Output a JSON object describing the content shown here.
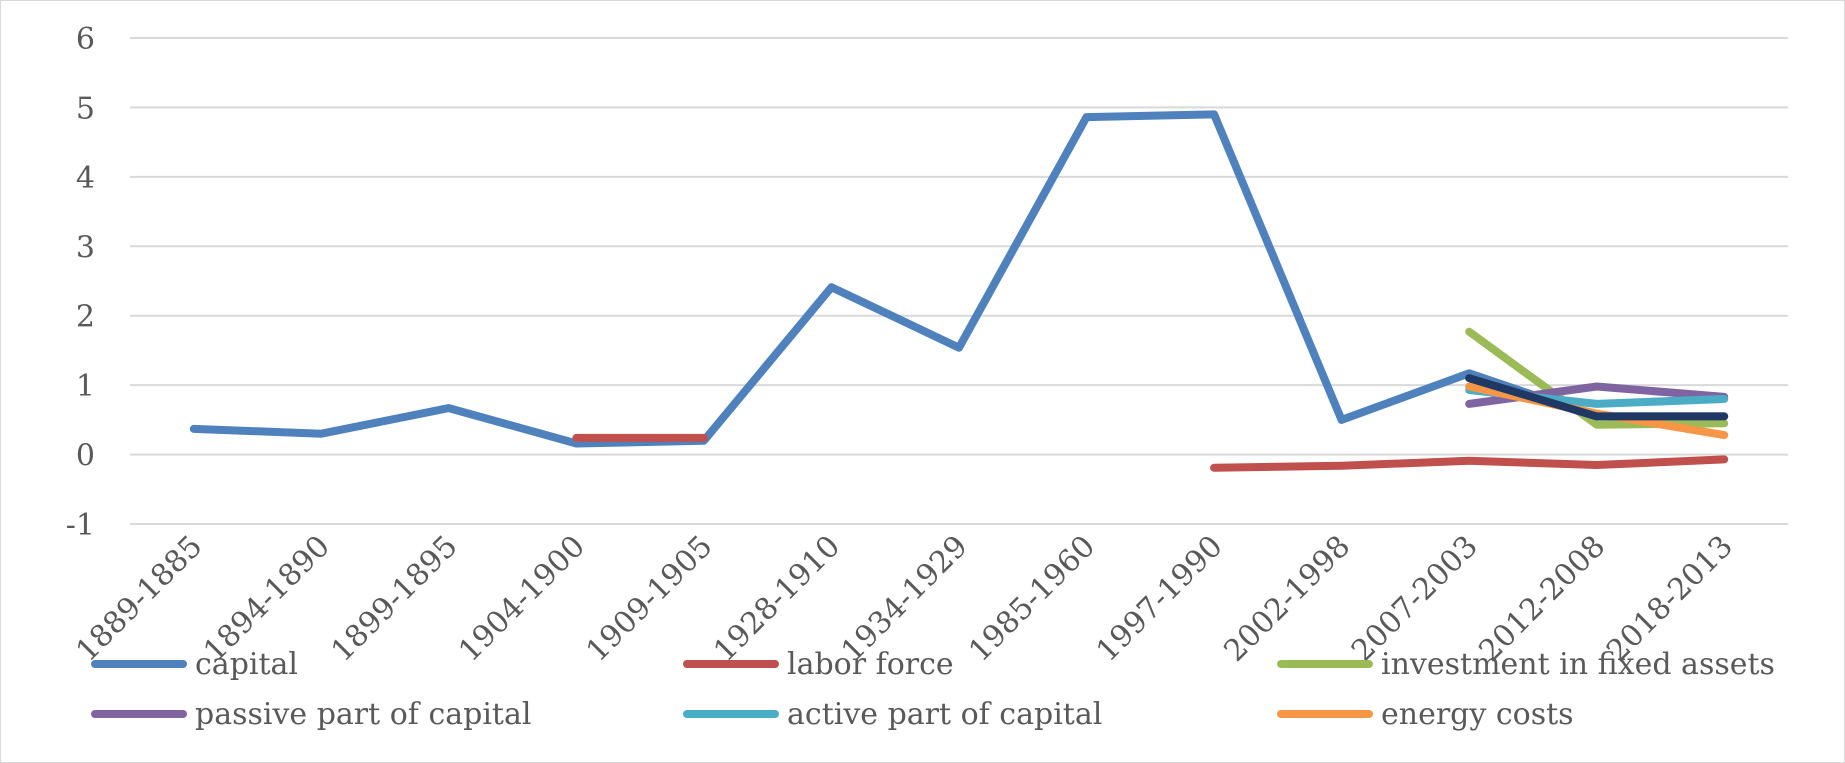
{
  "chart_data": {
    "type": "line",
    "categories": [
      "1889-1885",
      "1894-1890",
      "1899-1895",
      "1904-1900",
      "1909-1905",
      "1928-1910",
      "1934-1929",
      "1985-1960",
      "1997-1990",
      "2002-1998",
      "2007-2003",
      "2012-2008",
      "2018-2013"
    ],
    "ylim": [
      -1,
      6
    ],
    "yticks": [
      "-1",
      "0",
      "1",
      "2",
      "3",
      "4",
      "5",
      "6"
    ],
    "grid": true,
    "legend_position": "bottom",
    "series": [
      {
        "name": "capital",
        "color": "#4f81bd",
        "values": [
          0.37,
          0.3,
          0.67,
          0.16,
          0.2,
          2.41,
          1.54,
          4.86,
          4.9,
          0.5,
          1.17,
          0.55,
          0.55
        ]
      },
      {
        "name": "labor force",
        "color": "#c0504d",
        "values": [
          null,
          null,
          null,
          0.24,
          0.24,
          null,
          null,
          null,
          -0.19,
          -0.16,
          -0.09,
          -0.15,
          -0.07
        ]
      },
      {
        "name": "investment in fixed assets",
        "color": "#9bbb59",
        "values": [
          null,
          null,
          null,
          null,
          null,
          null,
          null,
          null,
          null,
          null,
          1.77,
          0.43,
          0.45
        ]
      },
      {
        "name": "passive part of capital",
        "color": "#8064a2",
        "values": [
          null,
          null,
          null,
          null,
          null,
          null,
          null,
          null,
          null,
          null,
          0.73,
          0.98,
          0.83
        ]
      },
      {
        "name": "active part of capital",
        "color": "#4bacc6",
        "values": [
          null,
          null,
          null,
          null,
          null,
          null,
          null,
          null,
          null,
          null,
          0.93,
          0.73,
          0.8
        ]
      },
      {
        "name": "energy costs",
        "color": "#f79646",
        "values": [
          null,
          null,
          null,
          null,
          null,
          null,
          null,
          null,
          null,
          null,
          0.98,
          0.59,
          0.28
        ]
      },
      {
        "name": "",
        "color": "#1f3864",
        "values": [
          null,
          null,
          null,
          null,
          null,
          null,
          null,
          null,
          null,
          null,
          1.1,
          0.55,
          0.55
        ]
      }
    ]
  }
}
